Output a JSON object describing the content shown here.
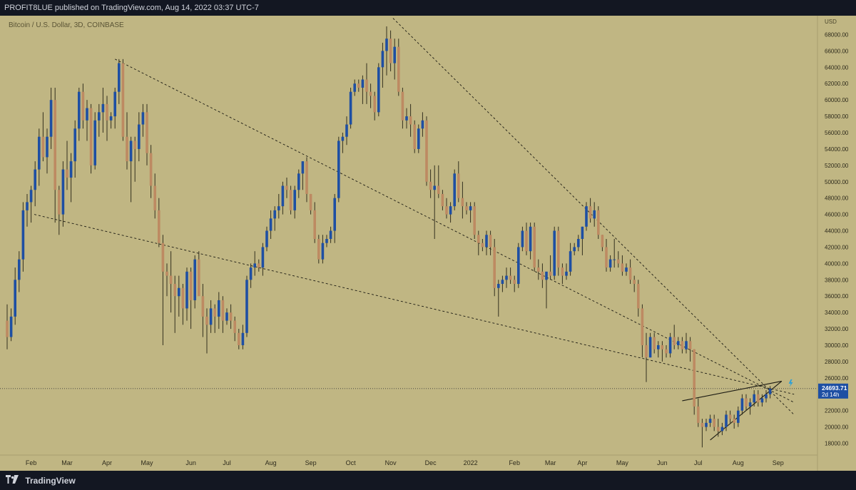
{
  "header": {
    "publisher_line": "PROFIT8LUE published on TradingView.com, Aug 14, 2022 03:37 UTC-7"
  },
  "footer": {
    "brand": "TradingView"
  },
  "colors": {
    "background": "#c0b683",
    "up": "#1e4fa3",
    "down": "#bd8a62",
    "wick": "#33301f",
    "label_bg": "#1e4fa3"
  },
  "chart_data": {
    "type": "candlestick",
    "title": "Bitcoin / U.S. Dollar, 3D, COINBASE",
    "currency": "USD",
    "ylim": [
      17000,
      69000
    ],
    "y_ticks": [
      18000,
      20000,
      22000,
      24000,
      26000,
      28000,
      30000,
      32000,
      34000,
      36000,
      38000,
      40000,
      42000,
      44000,
      46000,
      48000,
      50000,
      52000,
      54000,
      56000,
      58000,
      60000,
      62000,
      64000,
      66000,
      68000
    ],
    "x_labels": [
      "Feb",
      "Mar",
      "Apr",
      "May",
      "Jun",
      "Jul",
      "Aug",
      "Sep",
      "Oct",
      "Nov",
      "Dec",
      "2022",
      "Feb",
      "Mar",
      "Apr",
      "May",
      "Jun",
      "Jul",
      "Aug",
      "Sep"
    ],
    "x_label_candle_index": [
      6,
      15,
      25,
      35,
      46,
      55,
      66,
      76,
      86,
      96,
      106,
      116,
      127,
      136,
      144,
      154,
      164,
      173,
      183,
      193
    ],
    "last_price": 24693.71,
    "last_price_label": "24693.71",
    "countdown_label": "2d 14h",
    "grid": false,
    "candles_ohlc": [
      [
        33000,
        35000,
        29500,
        31000
      ],
      [
        31000,
        34500,
        30500,
        33500
      ],
      [
        33500,
        39500,
        32500,
        38000
      ],
      [
        38000,
        41500,
        36500,
        40500
      ],
      [
        40500,
        47500,
        39000,
        46500
      ],
      [
        46500,
        48500,
        44500,
        47500
      ],
      [
        47500,
        49500,
        45000,
        49000
      ],
      [
        49000,
        52500,
        47000,
        51500
      ],
      [
        51500,
        56500,
        49500,
        55500
      ],
      [
        55500,
        58500,
        52500,
        53000
      ],
      [
        53000,
        56500,
        51000,
        55500
      ],
      [
        55500,
        61500,
        54000,
        60000
      ],
      [
        60000,
        61500,
        45000,
        49000
      ],
      [
        49000,
        49500,
        43500,
        46000
      ],
      [
        46000,
        52500,
        44500,
        51500
      ],
      [
        51500,
        55000,
        49000,
        50500
      ],
      [
        50500,
        53500,
        47500,
        52500
      ],
      [
        52500,
        57500,
        50500,
        56500
      ],
      [
        56500,
        61500,
        55000,
        61000
      ],
      [
        61000,
        62000,
        56500,
        57500
      ],
      [
        57500,
        60000,
        55000,
        59000
      ],
      [
        59000,
        59500,
        51000,
        52000
      ],
      [
        52000,
        58500,
        51500,
        57500
      ],
      [
        57500,
        59500,
        55500,
        58500
      ],
      [
        58500,
        61500,
        56000,
        59500
      ],
      [
        59500,
        60500,
        55000,
        57500
      ],
      [
        57500,
        58500,
        56500,
        58000
      ],
      [
        58000,
        61500,
        56500,
        61000
      ],
      [
        61000,
        65000,
        59500,
        64500
      ],
      [
        64500,
        65000,
        55000,
        55500
      ],
      [
        55500,
        58500,
        51500,
        52500
      ],
      [
        52500,
        55500,
        47500,
        55000
      ],
      [
        55000,
        55500,
        50000,
        54000
      ],
      [
        54000,
        58500,
        52500,
        57000
      ],
      [
        57000,
        59500,
        55500,
        58500
      ],
      [
        58500,
        59500,
        52000,
        53500
      ],
      [
        53500,
        54500,
        48000,
        49500
      ],
      [
        49500,
        51000,
        45500,
        46500
      ],
      [
        46500,
        48000,
        42000,
        42500
      ],
      [
        42500,
        43500,
        30000,
        39000
      ],
      [
        39000,
        40000,
        36000,
        38500
      ],
      [
        38500,
        41500,
        34000,
        37500
      ],
      [
        37500,
        38500,
        31500,
        36000
      ],
      [
        36000,
        38500,
        33500,
        37000
      ],
      [
        37000,
        37500,
        32500,
        34500
      ],
      [
        34500,
        39500,
        33000,
        39000
      ],
      [
        39000,
        39500,
        32000,
        35500
      ],
      [
        35500,
        41000,
        34500,
        40500
      ],
      [
        40500,
        41500,
        36500,
        36000
      ],
      [
        36000,
        37500,
        31000,
        33500
      ],
      [
        33500,
        34500,
        29000,
        32500
      ],
      [
        32500,
        35500,
        31500,
        34500
      ],
      [
        34500,
        35000,
        31500,
        33500
      ],
      [
        33500,
        36500,
        32000,
        35500
      ],
      [
        35500,
        36000,
        31500,
        33000
      ],
      [
        33000,
        34500,
        32500,
        34000
      ],
      [
        34000,
        35000,
        32000,
        33000
      ],
      [
        33000,
        33500,
        30500,
        31500
      ],
      [
        31500,
        32000,
        29500,
        30000
      ],
      [
        30000,
        32500,
        29500,
        31500
      ],
      [
        31500,
        38500,
        31000,
        38000
      ],
      [
        38000,
        40000,
        37000,
        39500
      ],
      [
        39500,
        41500,
        38500,
        40000
      ],
      [
        40000,
        40500,
        39000,
        39500
      ],
      [
        39500,
        42500,
        38500,
        42000
      ],
      [
        42000,
        44500,
        41500,
        44000
      ],
      [
        44000,
        46500,
        43000,
        45500
      ],
      [
        45500,
        47000,
        44000,
        46500
      ],
      [
        46500,
        48500,
        45500,
        47000
      ],
      [
        47000,
        50000,
        46000,
        49500
      ],
      [
        49500,
        50500,
        48000,
        49000
      ],
      [
        49000,
        49500,
        46000,
        46500
      ],
      [
        46500,
        49500,
        45500,
        49000
      ],
      [
        49000,
        51500,
        48000,
        51000
      ],
      [
        51000,
        52500,
        49000,
        52500
      ],
      [
        52500,
        53000,
        47500,
        48500
      ],
      [
        48500,
        48500,
        46000,
        46500
      ],
      [
        46500,
        47500,
        42500,
        43000
      ],
      [
        43000,
        43500,
        40000,
        40500
      ],
      [
        40500,
        43500,
        40000,
        42500
      ],
      [
        42500,
        43500,
        42000,
        43000
      ],
      [
        43000,
        44500,
        42500,
        44000
      ],
      [
        44000,
        48500,
        42500,
        48000
      ],
      [
        48000,
        55500,
        47500,
        55000
      ],
      [
        55000,
        56000,
        53500,
        55500
      ],
      [
        55500,
        58000,
        54500,
        57000
      ],
      [
        57000,
        61500,
        56500,
        61000
      ],
      [
        61000,
        62500,
        60500,
        62000
      ],
      [
        62000,
        62500,
        61000,
        61500
      ],
      [
        61500,
        63000,
        59500,
        62500
      ],
      [
        62500,
        64500,
        59500,
        61000
      ],
      [
        61000,
        62000,
        59000,
        60500
      ],
      [
        60500,
        61000,
        57500,
        58500
      ],
      [
        58500,
        64500,
        58000,
        64000
      ],
      [
        64000,
        67000,
        61500,
        66000
      ],
      [
        66000,
        69000,
        63000,
        67500
      ],
      [
        67500,
        68500,
        63500,
        64500
      ],
      [
        64500,
        67500,
        62500,
        66500
      ],
      [
        66500,
        67500,
        60500,
        61000
      ],
      [
        61000,
        61500,
        56500,
        57500
      ],
      [
        57500,
        59000,
        56500,
        58000
      ],
      [
        58000,
        59500,
        55500,
        57000
      ],
      [
        57000,
        57500,
        53500,
        54000
      ],
      [
        54000,
        57000,
        53500,
        56500
      ],
      [
        56500,
        58500,
        55500,
        57500
      ],
      [
        57500,
        58000,
        49500,
        50000
      ],
      [
        50000,
        51500,
        48000,
        49000
      ],
      [
        49000,
        52000,
        43000,
        49500
      ],
      [
        49500,
        52000,
        48000,
        48500
      ],
      [
        48500,
        49000,
        46500,
        47000
      ],
      [
        47000,
        48000,
        45500,
        46000
      ],
      [
        46000,
        47500,
        45000,
        47000
      ],
      [
        47000,
        51500,
        46500,
        51000
      ],
      [
        51000,
        52500,
        47500,
        48000
      ],
      [
        48000,
        50000,
        45500,
        47000
      ],
      [
        47000,
        47500,
        46000,
        46500
      ],
      [
        46500,
        47500,
        45000,
        47000
      ],
      [
        47000,
        47500,
        43000,
        43500
      ],
      [
        43500,
        44000,
        41000,
        42500
      ],
      [
        42500,
        43000,
        41500,
        42000
      ],
      [
        42000,
        44000,
        41000,
        43500
      ],
      [
        43500,
        44000,
        41000,
        42000
      ],
      [
        42000,
        43000,
        36000,
        37000
      ],
      [
        37000,
        38000,
        33500,
        37500
      ],
      [
        37500,
        38500,
        36500,
        38000
      ],
      [
        38000,
        39500,
        37000,
        38500
      ],
      [
        38500,
        39500,
        37500,
        38000
      ],
      [
        38000,
        38500,
        36500,
        37500
      ],
      [
        37500,
        42500,
        37000,
        42000
      ],
      [
        42000,
        44500,
        41500,
        44000
      ],
      [
        44000,
        45000,
        41000,
        41500
      ],
      [
        41500,
        45000,
        40500,
        44500
      ],
      [
        44500,
        45000,
        39000,
        39500
      ],
      [
        39500,
        40500,
        38000,
        39000
      ],
      [
        39000,
        40000,
        37000,
        38000
      ],
      [
        38000,
        39000,
        34500,
        39000
      ],
      [
        39000,
        41000,
        38000,
        38500
      ],
      [
        38500,
        44500,
        38000,
        44000
      ],
      [
        44000,
        44500,
        38500,
        39500
      ],
      [
        39500,
        40000,
        37500,
        38500
      ],
      [
        38500,
        40000,
        38000,
        39000
      ],
      [
        39000,
        42500,
        38500,
        41500
      ],
      [
        41500,
        42500,
        41000,
        42000
      ],
      [
        42000,
        43500,
        41500,
        43000
      ],
      [
        43000,
        44500,
        41000,
        44500
      ],
      [
        44500,
        47500,
        44000,
        47000
      ],
      [
        47000,
        48000,
        45000,
        45500
      ],
      [
        45500,
        47500,
        44500,
        46500
      ],
      [
        46500,
        47000,
        43000,
        43500
      ],
      [
        43500,
        43500,
        41500,
        42000
      ],
      [
        42000,
        43000,
        39000,
        39500
      ],
      [
        39500,
        41000,
        39000,
        40500
      ],
      [
        40500,
        43000,
        39500,
        40500
      ],
      [
        40500,
        41500,
        39500,
        40000
      ],
      [
        40000,
        41000,
        38500,
        39000
      ],
      [
        39000,
        40000,
        38500,
        39500
      ],
      [
        39500,
        40500,
        37500,
        38000
      ],
      [
        38000,
        38500,
        36500,
        37500
      ],
      [
        37500,
        38000,
        33500,
        34500
      ],
      [
        34500,
        35000,
        28500,
        30000
      ],
      [
        30000,
        31500,
        25500,
        28500
      ],
      [
        28500,
        31500,
        28500,
        31000
      ],
      [
        31000,
        31500,
        29000,
        29500
      ],
      [
        29500,
        30500,
        28500,
        30000
      ],
      [
        30000,
        30500,
        28000,
        29500
      ],
      [
        29500,
        30000,
        28500,
        29000
      ],
      [
        29000,
        31500,
        28500,
        31000
      ],
      [
        31000,
        32500,
        29500,
        30000
      ],
      [
        30000,
        31000,
        29500,
        30500
      ],
      [
        30500,
        31000,
        29000,
        29500
      ],
      [
        29500,
        31500,
        29000,
        30500
      ],
      [
        30500,
        31000,
        28000,
        29500
      ],
      [
        29500,
        29500,
        21500,
        22500
      ],
      [
        22500,
        23500,
        20000,
        20500
      ],
      [
        20500,
        21000,
        17500,
        20000
      ],
      [
        20000,
        21000,
        19500,
        20500
      ],
      [
        20500,
        21500,
        20000,
        21000
      ],
      [
        21000,
        21500,
        19500,
        20000
      ],
      [
        20000,
        21000,
        18800,
        19500
      ],
      [
        19500,
        20500,
        19000,
        20000
      ],
      [
        20000,
        22000,
        19500,
        21500
      ],
      [
        21500,
        22000,
        20500,
        21000
      ],
      [
        21000,
        21500,
        19800,
        20500
      ],
      [
        20500,
        22500,
        20000,
        22000
      ],
      [
        22000,
        24000,
        21500,
        23500
      ],
      [
        23500,
        24000,
        22000,
        22500
      ],
      [
        22500,
        23500,
        21500,
        23000
      ],
      [
        23000,
        24500,
        22500,
        24000
      ],
      [
        24000,
        24500,
        22500,
        23000
      ],
      [
        23000,
        24000,
        22500,
        23500
      ],
      [
        23500,
        24500,
        23000,
        24000
      ],
      [
        24000,
        25000,
        23500,
        24693.71
      ]
    ],
    "trendlines": [
      {
        "name": "upper-descending",
        "style": "dashed",
        "from": {
          "i": 96.6,
          "price": 70000
        },
        "to": {
          "i": 197,
          "price": 21500
        }
      },
      {
        "name": "middle-descending",
        "style": "dashed",
        "from": {
          "i": 27,
          "price": 65000
        },
        "to": {
          "i": 197,
          "price": 23000
        }
      },
      {
        "name": "lower-descending",
        "style": "dashed",
        "from": {
          "i": 6.8,
          "price": 46000
        },
        "to": {
          "i": 197,
          "price": 24000
        }
      },
      {
        "name": "wedge-top",
        "style": "solid",
        "from": {
          "i": 169,
          "price": 23200
        },
        "to": {
          "i": 193.9,
          "price": 25600
        }
      },
      {
        "name": "wedge-bottom",
        "style": "solid",
        "from": {
          "i": 176,
          "price": 18400
        },
        "to": {
          "i": 193.9,
          "price": 25600
        }
      }
    ]
  }
}
